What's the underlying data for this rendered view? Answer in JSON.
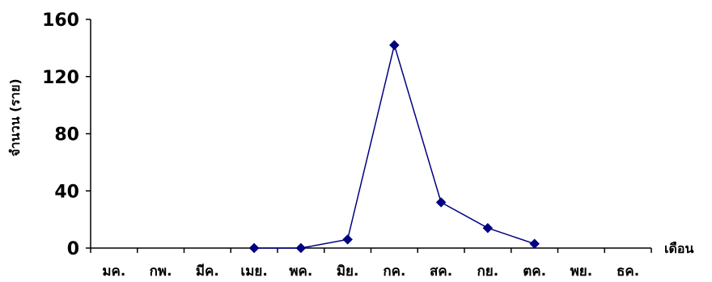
{
  "chart_data": {
    "type": "line",
    "categories": [
      "มค.",
      "กพ.",
      "มีค.",
      "เมย.",
      "พค.",
      "มิย.",
      "กค.",
      "สค.",
      "กย.",
      "ตค.",
      "พย.",
      "ธค."
    ],
    "series": [
      {
        "values": [
          null,
          null,
          null,
          0,
          0,
          6,
          142,
          32,
          14,
          3,
          null,
          null
        ]
      }
    ],
    "xlabel": "เดือน",
    "ylabel": "จำนวน (ราย)",
    "ylim": [
      0,
      160
    ],
    "yticks": [
      0,
      40,
      80,
      120,
      160
    ],
    "grid": false,
    "legend": false,
    "colors": {
      "line": "#000080",
      "marker": "#000080",
      "axis": "#000000"
    }
  }
}
